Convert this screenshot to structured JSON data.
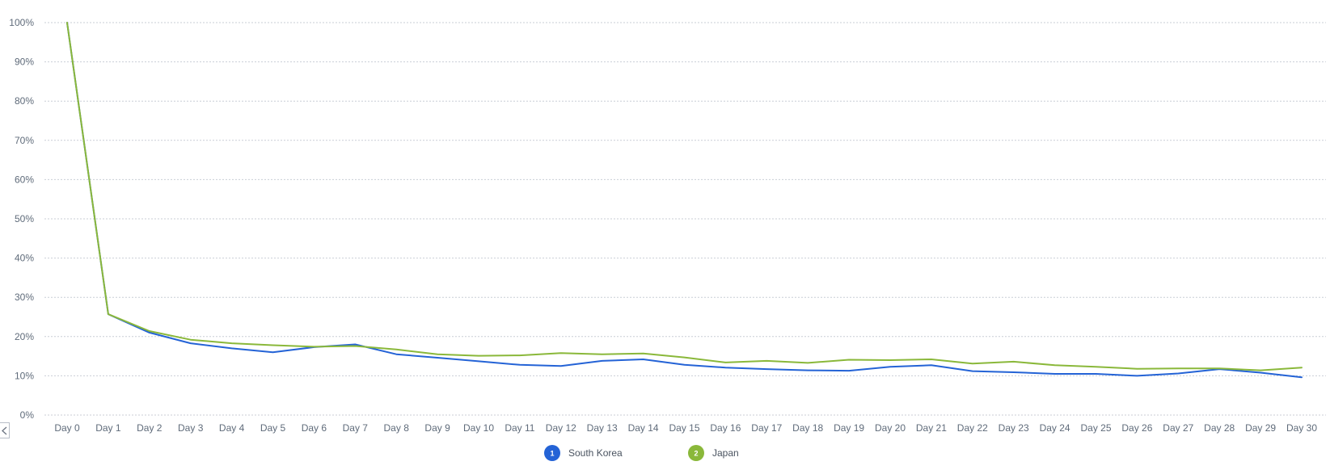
{
  "chart_data": {
    "type": "line",
    "title": "",
    "xlabel": "",
    "ylabel": "",
    "categories": [
      "Day 0",
      "Day 1",
      "Day 2",
      "Day 3",
      "Day 4",
      "Day 5",
      "Day 6",
      "Day 7",
      "Day 8",
      "Day 9",
      "Day 10",
      "Day 11",
      "Day 12",
      "Day 13",
      "Day 14",
      "Day 15",
      "Day 16",
      "Day 17",
      "Day 18",
      "Day 19",
      "Day 20",
      "Day 21",
      "Day 22",
      "Day 23",
      "Day 24",
      "Day 25",
      "Day 26",
      "Day 27",
      "Day 28",
      "Day 29",
      "Day 30"
    ],
    "ylim": [
      0,
      100
    ],
    "yticks": [
      "0%",
      "10%",
      "20%",
      "30%",
      "40%",
      "50%",
      "60%",
      "70%",
      "80%",
      "90%",
      "100%"
    ],
    "grid": true,
    "legend_position": "bottom-center",
    "series": [
      {
        "name": "South Korea",
        "legend_number": "1",
        "color": "#2463d6",
        "values": [
          100,
          25.7,
          21.0,
          18.3,
          17.0,
          16.0,
          17.3,
          18.0,
          15.5,
          14.6,
          13.7,
          12.8,
          12.5,
          13.8,
          14.2,
          12.8,
          12.1,
          11.7,
          11.4,
          11.3,
          12.3,
          12.7,
          11.2,
          10.9,
          10.5,
          10.5,
          10.0,
          10.6,
          11.7,
          10.8,
          9.6
        ]
      },
      {
        "name": "Japan",
        "legend_number": "2",
        "color": "#8ab83a",
        "values": [
          100,
          25.7,
          21.4,
          19.2,
          18.3,
          17.8,
          17.4,
          17.6,
          16.7,
          15.5,
          15.1,
          15.2,
          15.8,
          15.5,
          15.7,
          14.7,
          13.4,
          13.8,
          13.3,
          14.1,
          14.0,
          14.2,
          13.1,
          13.6,
          12.7,
          12.3,
          11.8,
          11.9,
          11.9,
          11.4,
          12.1
        ]
      }
    ]
  },
  "icons": {
    "collapse": "chevron-left-icon"
  }
}
